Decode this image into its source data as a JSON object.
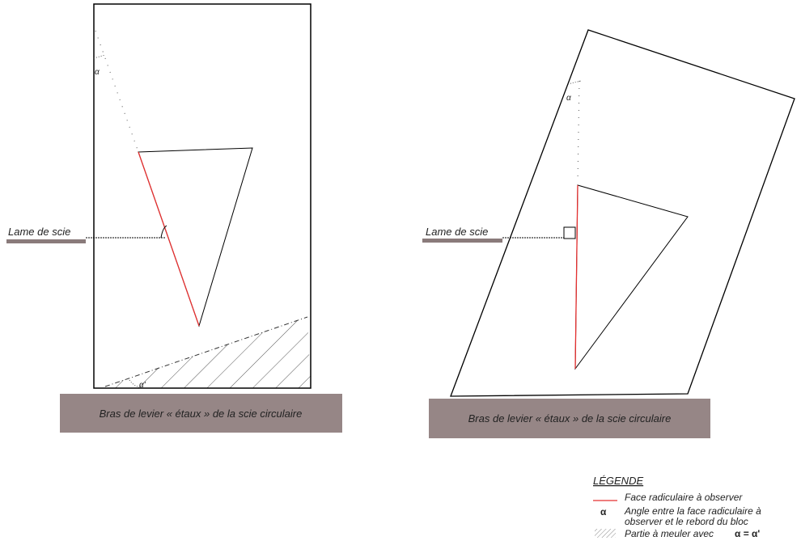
{
  "left_panel": {
    "blade_label": "Lame de scie",
    "angle_top": "α",
    "angle_bottom": "α'",
    "base_label": "Bras de levier « étaux » de la scie circulaire"
  },
  "right_panel": {
    "blade_label": "Lame de scie",
    "angle_top": "α",
    "base_label": "Bras de levier « étaux » de la scie circulaire"
  },
  "legend": {
    "title": "LÉGENDE",
    "items": [
      {
        "text": "Face radiculaire à observer"
      },
      {
        "symbol": "α",
        "text": [
          "Angle entre la face radiculaire à",
          "observer et le rebord du bloc"
        ]
      },
      {
        "text": "Partie à meuler avec",
        "formula": "α = α'"
      }
    ]
  }
}
